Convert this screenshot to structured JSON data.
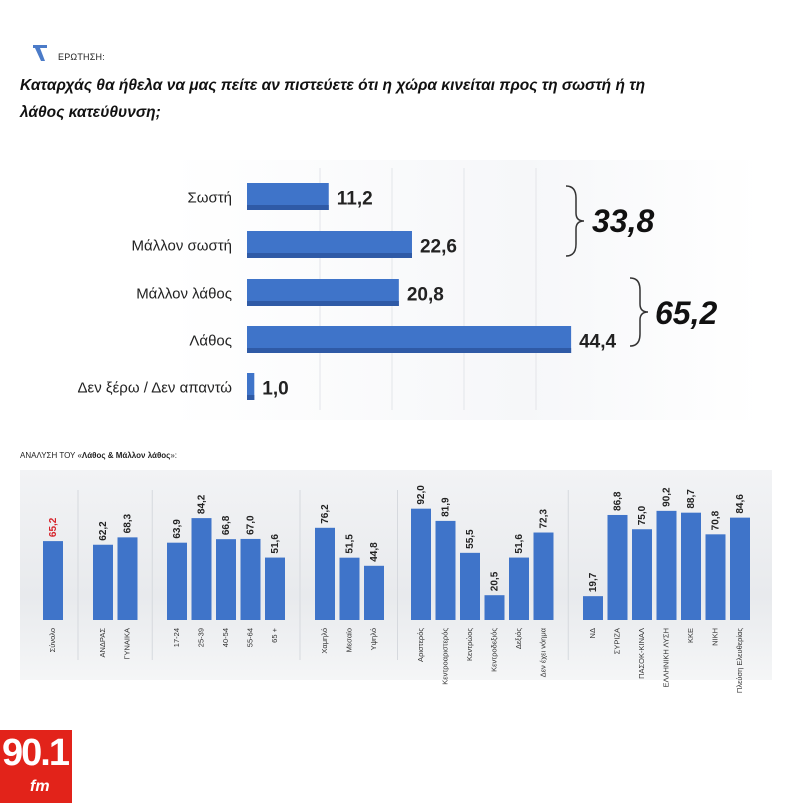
{
  "header": {
    "question_label": "ΕΡΩΤΗΣΗ:",
    "question_text_line1": "Καταρχάς θα ήθελα να μας πείτε αν πιστεύετε ότι η χώρα κινείται προς τη σωστή ή τη",
    "question_text_line2": "λάθος κατεύθυνση;"
  },
  "breakdown_label": {
    "prefix": "ΑΝΑΛΥΣΗ ΤΟΥ «",
    "bold": "Λάθος & Μάλλον λάθος",
    "suffix": "»:"
  },
  "logo": {
    "number": "90.1",
    "suffix": "fm"
  },
  "colors": {
    "bar": "#3f74c9",
    "bar_dark": "#2f5aa6",
    "highlight_label": "#d6232a",
    "logo": "#e2231a"
  },
  "chart_data": [
    {
      "type": "bar",
      "orientation": "horizontal",
      "categories": [
        "Σωστή",
        "Μάλλον σωστή",
        "Μάλλον λάθος",
        "Λάθος",
        "Δεν ξέρω / Δεν απαντώ"
      ],
      "values": [
        11.2,
        22.6,
        20.8,
        44.4,
        1.0
      ],
      "value_labels": [
        "11,2",
        "22,6",
        "20,8",
        "44,4",
        "1,0"
      ],
      "groups": [
        {
          "members": [
            "Σωστή",
            "Μάλλον σωστή"
          ],
          "total_label": "33,8"
        },
        {
          "members": [
            "Μάλλον λάθος",
            "Λάθος"
          ],
          "total_label": "65,2"
        }
      ],
      "xlim": [
        0,
        50
      ],
      "grid": true
    },
    {
      "type": "bar",
      "orientation": "vertical",
      "groups": [
        {
          "categories": [
            "Σύνολο"
          ],
          "values": [
            65.2
          ],
          "labels": [
            "65,2"
          ],
          "highlight": true
        },
        {
          "categories": [
            "ΑΝΔΡΑΣ",
            "ΓΥΝΑΙΚΑ"
          ],
          "values": [
            62.2,
            68.3
          ],
          "labels": [
            "62,2",
            "68,3"
          ]
        },
        {
          "categories": [
            "17-24",
            "25-39",
            "40-54",
            "55-64",
            "65 +"
          ],
          "values": [
            63.9,
            84.2,
            66.8,
            67.0,
            51.6
          ],
          "labels": [
            "63,9",
            "84,2",
            "66,8",
            "67,0",
            "51,6"
          ]
        },
        {
          "categories": [
            "Χαμηλό",
            "Μεσαίο",
            "Υψηλό"
          ],
          "values": [
            76.2,
            51.5,
            44.8
          ],
          "labels": [
            "76,2",
            "51,5",
            "44,8"
          ]
        },
        {
          "categories": [
            "Αριστερός",
            "Κεντροαριστερός",
            "Κεντρώος",
            "Κεντροδεξιός",
            "Δεξιός",
            "Δεν έχει νόημα"
          ],
          "values": [
            92.0,
            81.9,
            55.5,
            20.5,
            51.6,
            72.3
          ],
          "labels": [
            "92,0",
            "81,9",
            "55,5",
            "20,5",
            "51,6",
            "72,3"
          ]
        },
        {
          "categories": [
            "ΝΔ",
            "ΣΥΡΙΖΑ",
            "ΠΑΣΟΚ-ΚΙΝΑΛ",
            "ΕΛΛΗΝΙΚΗ ΛΥΣΗ",
            "ΚΚΕ",
            "ΝΙΚΗ",
            "Πλεύση Ελευθερίας"
          ],
          "values": [
            19.7,
            86.8,
            75.0,
            90.2,
            88.7,
            70.8,
            84.6
          ],
          "labels": [
            "19,7",
            "86,8",
            "75,0",
            "90,2",
            "88,7",
            "70,8",
            "84,6"
          ]
        }
      ],
      "ylim": [
        0,
        100
      ]
    }
  ]
}
